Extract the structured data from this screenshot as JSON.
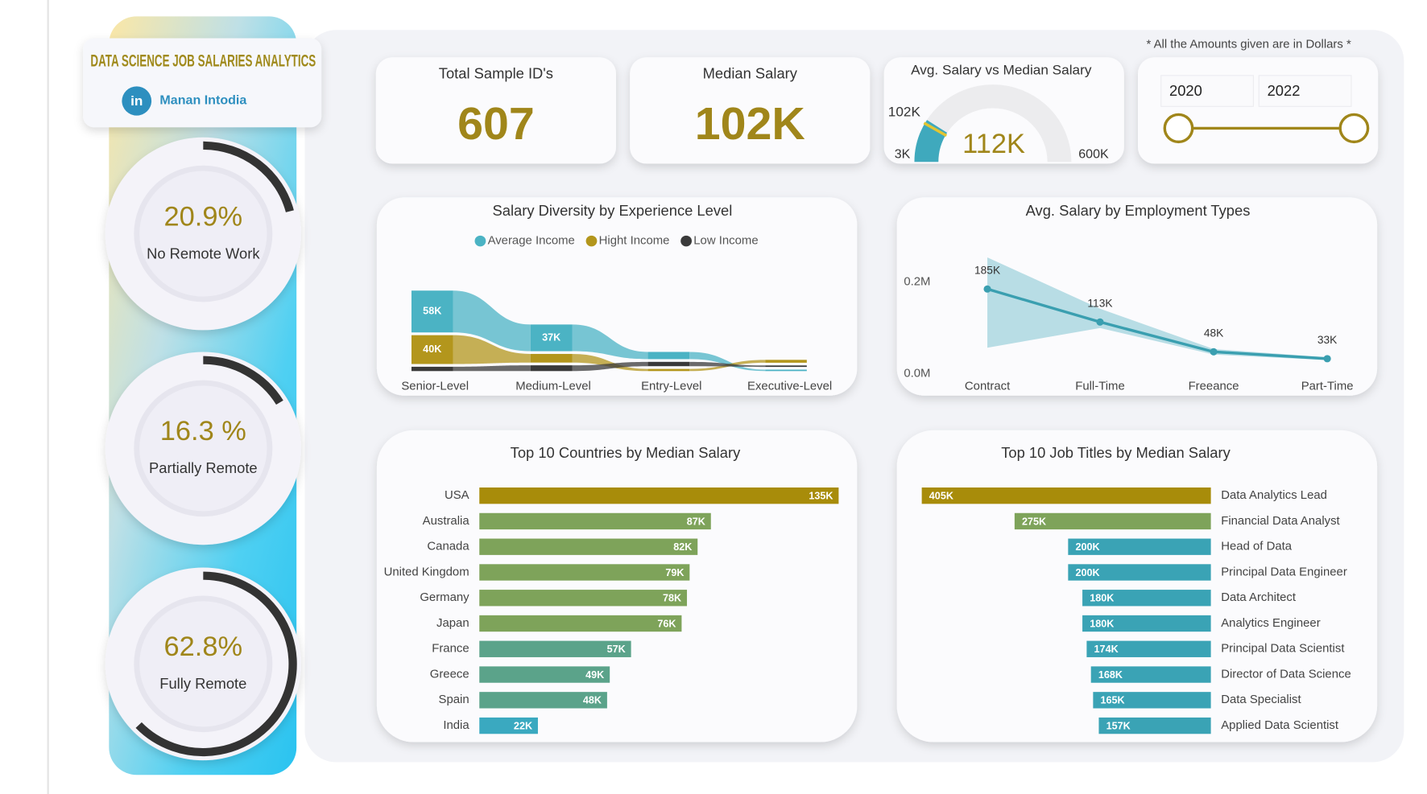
{
  "header": {
    "title": "DATA SCIENCE JOB SALARIES ANALYTICS",
    "logo": "in",
    "author": "Manan Intodia",
    "note": "* All the Amounts given are in Dollars *"
  },
  "remote": [
    {
      "value": 20.9,
      "label": "20.9%",
      "name": "No Remote Work"
    },
    {
      "value": 16.3,
      "label": "16.3 %",
      "name": "Partially Remote"
    },
    {
      "value": 62.8,
      "label": "62.8%",
      "name": "Fully Remote"
    }
  ],
  "kpis": [
    {
      "title": "Total Sample ID's",
      "value": 607
    },
    {
      "title": "Median Salary",
      "value": "102K"
    }
  ],
  "gauge": {
    "title": "Avg. Salary vs Median Salary",
    "value": 112000,
    "value_label": "112K",
    "target": 102000,
    "target_label": "102K",
    "min": {
      "value": 3000,
      "label": "3K"
    },
    "max": {
      "value": 600000,
      "label": "600K"
    },
    "color": "#3fa9bd",
    "target_color": "#e3c531"
  },
  "year_range": [
    2020,
    2022
  ],
  "chart_data": [
    {
      "type": "ribbon",
      "title": "Salary Diversity by Experience Level",
      "categories": [
        "Senior-Level",
        "Medium-Level",
        "Entry-Level",
        "Executive-Level"
      ],
      "series": [
        {
          "name": "Average Income",
          "color": "#4bb3c4",
          "values": [
            58000,
            37000,
            10000,
            2000
          ],
          "value_labels": [
            "58K",
            "37K",
            null,
            null
          ]
        },
        {
          "name": "Hight Income",
          "color": "#b3961c",
          "values": [
            40000,
            12000,
            3000,
            4000
          ],
          "value_labels": [
            "40K",
            null,
            null,
            null
          ]
        },
        {
          "name": "Low Income",
          "color": "#3a3a3a",
          "values": [
            6000,
            8000,
            6000,
            2000
          ],
          "value_labels": [
            null,
            null,
            null,
            null
          ]
        }
      ]
    },
    {
      "type": "line",
      "title": "Avg. Salary by Employment Types",
      "categories": [
        "Contract",
        "Full-Time",
        "Freeance",
        "Part-Time"
      ],
      "values": [
        185000,
        113000,
        48000,
        33000
      ],
      "value_labels": [
        "185K",
        "113K",
        "48K",
        "33K"
      ],
      "band": {
        "upper": [
          254000,
          142000,
          54000,
          36000
        ],
        "lower": [
          57000,
          100000,
          42000,
          30000
        ]
      },
      "color": "#3a9fb0",
      "band_color": "#a8d6df",
      "ylim": [
        0,
        260000
      ],
      "yticks": [
        {
          "value": 0,
          "label": "0.0M"
        },
        {
          "value": 200000,
          "label": "0.2M"
        }
      ]
    },
    {
      "type": "hbar",
      "direction": "right",
      "title": "Top 10 Countries by Median Salary",
      "categories": [
        "USA",
        "Australia",
        "Canada",
        "United Kingdom",
        "Germany",
        "Japan",
        "France",
        "Greece",
        "Spain",
        "India"
      ],
      "values": [
        135000,
        87000,
        82000,
        79000,
        78000,
        76000,
        57000,
        49000,
        48000,
        22000
      ],
      "value_labels": [
        "135K",
        "87K",
        "82K",
        "79K",
        "78K",
        "76K",
        "57K",
        "49K",
        "48K",
        "22K"
      ],
      "colors": [
        "#a88c0a",
        "#7ea35a",
        "#7ea35a",
        "#7ea35a",
        "#7ea35a",
        "#7ea35a",
        "#5ba38a",
        "#5ba38a",
        "#5ba38a",
        "#3aa9c0"
      ],
      "xlim": [
        0,
        135000
      ]
    },
    {
      "type": "hbar",
      "direction": "left",
      "title": "Top 10 Job Titles by Median Salary",
      "categories": [
        "Data Analytics Lead",
        "Financial Data Analyst",
        "Head of Data",
        "Principal Data Engineer",
        "Data Architect",
        "Analytics Engineer",
        "Principal Data Scientist",
        "Director of Data Science",
        "Data Specialist",
        "Applied Data Scientist"
      ],
      "values": [
        405000,
        275000,
        200000,
        200000,
        180000,
        180000,
        174000,
        168000,
        165000,
        157000
      ],
      "value_labels": [
        "405K",
        "275K",
        "200K",
        "200K",
        "180K",
        "180K",
        "174K",
        "168K",
        "165K",
        "157K"
      ],
      "colors": [
        "#a88c0a",
        "#7ea35a",
        "#3aa3b5",
        "#3aa3b5",
        "#3aa3b5",
        "#3aa3b5",
        "#3aa3b5",
        "#3aa3b5",
        "#3aa3b5",
        "#3aa3b5"
      ],
      "xlim": [
        0,
        405000
      ]
    }
  ]
}
